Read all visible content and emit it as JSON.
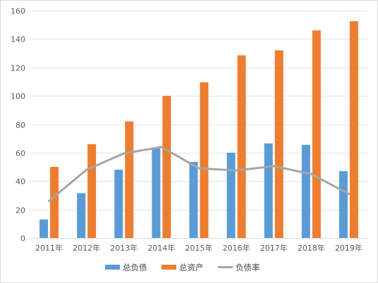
{
  "chart_data": {
    "type": "bar",
    "categories": [
      "2011年",
      "2012年",
      "2013年",
      "2014年",
      "2015年",
      "2016年",
      "2017年",
      "2018年",
      "2019年"
    ],
    "series": [
      {
        "name": "总负债",
        "type": "bar",
        "color": "#5b9bd5",
        "values": [
          13,
          31.5,
          48,
          63.5,
          53.5,
          60,
          66.5,
          65.5,
          47
        ]
      },
      {
        "name": "总资产",
        "type": "bar",
        "color": "#ed7d31",
        "values": [
          50,
          66,
          82,
          100,
          109.5,
          128.5,
          132,
          146,
          152.5
        ]
      },
      {
        "name": "负债率",
        "type": "line",
        "color": "#a5a5a5",
        "values": [
          26,
          48,
          59.5,
          64,
          49,
          47.5,
          50.5,
          45,
          31
        ]
      }
    ],
    "y_ticks": [
      "0",
      "20",
      "40",
      "60",
      "80",
      "100",
      "120",
      "140",
      "160"
    ],
    "ylim": [
      0,
      160
    ],
    "grid": true,
    "legend": "bottom"
  }
}
